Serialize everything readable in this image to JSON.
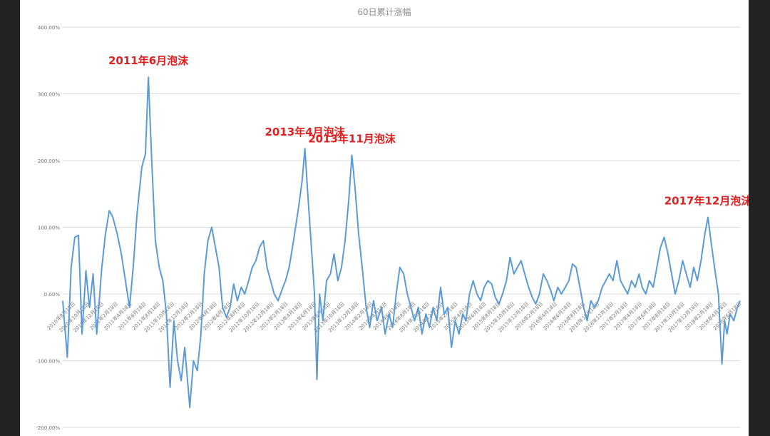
{
  "chart_data": {
    "type": "line",
    "title": "60日累计涨幅",
    "xlabel": "",
    "ylabel": "",
    "ylim": [
      -200,
      400
    ],
    "grid": true,
    "line_color": "#5b9bd5",
    "annotation_color": "#e02020",
    "y_ticks": [
      "400.00%",
      "300.00%",
      "200.00%",
      "100.00%",
      "0.00%",
      "-100.00%",
      "-200.00%"
    ],
    "x_tick_labels": [
      "2010年8月18日",
      "2010年10月18日",
      "2010年12月18日",
      "2011年2月18日",
      "2011年4月18日",
      "2011年6月18日",
      "2011年8月18日",
      "2011年10月18日",
      "2011年12月18日",
      "2012年2月18日",
      "2012年4月18日",
      "2012年6月18日",
      "2012年8月18日",
      "2012年10月18日",
      "2012年12月18日",
      "2013年2月18日",
      "2013年4月18日",
      "2013年6月18日",
      "2013年8月18日",
      "2013年10月18日",
      "2013年12月18日",
      "2014年2月18日",
      "2014年4月18日",
      "2014年6月18日",
      "2014年8月18日",
      "2014年10月18日",
      "2014年12月18日",
      "2015年2月18日",
      "2015年4月18日",
      "2015年6月18日",
      "2015年8月18日",
      "2015年10月18日",
      "2015年12月18日",
      "2016年2月18日",
      "2016年4月18日",
      "2016年6月18日",
      "2016年8月18日",
      "2016年10月18日",
      "2016年12月18日",
      "2017年2月18日",
      "2017年4月18日",
      "2017年6月18日",
      "2017年8月18日",
      "2017年10月18日",
      "2017年12月18日",
      "2018年2月18日",
      "2018年4月18日",
      "2018年6月18日"
    ],
    "series": [
      {
        "name": "",
        "points": [
          [
            "2010-08-01",
            -10
          ],
          [
            "2010-08-20",
            -95
          ],
          [
            "2010-09-05",
            40
          ],
          [
            "2010-09-20",
            85
          ],
          [
            "2010-10-05",
            88
          ],
          [
            "2010-10-20",
            -60
          ],
          [
            "2010-11-05",
            35
          ],
          [
            "2010-11-20",
            -20
          ],
          [
            "2010-12-05",
            30
          ],
          [
            "2010-12-20",
            -60
          ],
          [
            "2011-01-10",
            40
          ],
          [
            "2011-01-25",
            90
          ],
          [
            "2011-02-10",
            125
          ],
          [
            "2011-02-25",
            115
          ],
          [
            "2011-03-15",
            90
          ],
          [
            "2011-04-01",
            60
          ],
          [
            "2011-04-18",
            20
          ],
          [
            "2011-05-05",
            -20
          ],
          [
            "2011-05-20",
            40
          ],
          [
            "2011-06-05",
            120
          ],
          [
            "2011-06-25",
            190
          ],
          [
            "2011-07-10",
            210
          ],
          [
            "2011-07-22",
            325
          ],
          [
            "2011-08-05",
            200
          ],
          [
            "2011-08-20",
            80
          ],
          [
            "2011-09-05",
            40
          ],
          [
            "2011-09-20",
            20
          ],
          [
            "2011-10-05",
            -30
          ],
          [
            "2011-10-20",
            -140
          ],
          [
            "2011-11-05",
            -40
          ],
          [
            "2011-11-20",
            -100
          ],
          [
            "2011-12-05",
            -130
          ],
          [
            "2011-12-20",
            -80
          ],
          [
            "2012-01-10",
            -170
          ],
          [
            "2012-01-25",
            -100
          ],
          [
            "2012-02-10",
            -115
          ],
          [
            "2012-02-25",
            -60
          ],
          [
            "2012-03-10",
            30
          ],
          [
            "2012-03-25",
            80
          ],
          [
            "2012-04-10",
            100
          ],
          [
            "2012-04-25",
            70
          ],
          [
            "2012-05-10",
            40
          ],
          [
            "2012-05-25",
            -20
          ],
          [
            "2012-06-10",
            -35
          ],
          [
            "2012-06-25",
            -20
          ],
          [
            "2012-07-10",
            15
          ],
          [
            "2012-07-25",
            -10
          ],
          [
            "2012-08-10",
            10
          ],
          [
            "2012-08-25",
            0
          ],
          [
            "2012-09-10",
            20
          ],
          [
            "2012-09-25",
            40
          ],
          [
            "2012-10-10",
            50
          ],
          [
            "2012-10-25",
            70
          ],
          [
            "2012-11-10",
            80
          ],
          [
            "2012-11-25",
            40
          ],
          [
            "2012-12-10",
            20
          ],
          [
            "2012-12-25",
            0
          ],
          [
            "2013-01-10",
            -10
          ],
          [
            "2013-01-25",
            5
          ],
          [
            "2013-02-10",
            20
          ],
          [
            "2013-02-25",
            40
          ],
          [
            "2013-03-15",
            80
          ],
          [
            "2013-04-05",
            130
          ],
          [
            "2013-04-20",
            170
          ],
          [
            "2013-05-01",
            218
          ],
          [
            "2013-05-15",
            140
          ],
          [
            "2013-05-30",
            60
          ],
          [
            "2013-06-10",
            0
          ],
          [
            "2013-06-20",
            -128
          ],
          [
            "2013-07-01",
            0
          ],
          [
            "2013-07-15",
            -40
          ],
          [
            "2013-07-30",
            20
          ],
          [
            "2013-08-15",
            30
          ],
          [
            "2013-08-30",
            60
          ],
          [
            "2013-09-15",
            20
          ],
          [
            "2013-09-30",
            40
          ],
          [
            "2013-10-15",
            80
          ],
          [
            "2013-10-30",
            140
          ],
          [
            "2013-11-12",
            208
          ],
          [
            "2013-11-25",
            160
          ],
          [
            "2013-12-10",
            90
          ],
          [
            "2013-12-25",
            40
          ],
          [
            "2014-01-10",
            -20
          ],
          [
            "2014-01-25",
            -50
          ],
          [
            "2014-02-10",
            -10
          ],
          [
            "2014-02-25",
            -40
          ],
          [
            "2014-03-15",
            -20
          ],
          [
            "2014-03-30",
            -60
          ],
          [
            "2014-04-15",
            -30
          ],
          [
            "2014-04-30",
            -50
          ],
          [
            "2014-05-15",
            0
          ],
          [
            "2014-05-30",
            40
          ],
          [
            "2014-06-15",
            30
          ],
          [
            "2014-06-30",
            0
          ],
          [
            "2014-07-15",
            -20
          ],
          [
            "2014-07-30",
            -40
          ],
          [
            "2014-08-15",
            -20
          ],
          [
            "2014-08-30",
            -60
          ],
          [
            "2014-09-15",
            -30
          ],
          [
            "2014-09-30",
            -50
          ],
          [
            "2014-10-15",
            -20
          ],
          [
            "2014-10-30",
            -40
          ],
          [
            "2014-11-15",
            10
          ],
          [
            "2014-11-30",
            -30
          ],
          [
            "2014-12-15",
            -20
          ],
          [
            "2014-12-30",
            -80
          ],
          [
            "2015-01-15",
            -40
          ],
          [
            "2015-01-30",
            -60
          ],
          [
            "2015-02-15",
            -30
          ],
          [
            "2015-02-28",
            -40
          ],
          [
            "2015-03-15",
            0
          ],
          [
            "2015-03-30",
            20
          ],
          [
            "2015-04-15",
            0
          ],
          [
            "2015-04-30",
            -10
          ],
          [
            "2015-05-15",
            10
          ],
          [
            "2015-05-30",
            20
          ],
          [
            "2015-06-15",
            15
          ],
          [
            "2015-06-30",
            -5
          ],
          [
            "2015-07-15",
            -15
          ],
          [
            "2015-07-30",
            0
          ],
          [
            "2015-08-15",
            20
          ],
          [
            "2015-08-30",
            55
          ],
          [
            "2015-09-15",
            30
          ],
          [
            "2015-09-30",
            40
          ],
          [
            "2015-10-15",
            50
          ],
          [
            "2015-10-30",
            30
          ],
          [
            "2015-11-15",
            10
          ],
          [
            "2015-11-30",
            -5
          ],
          [
            "2015-12-15",
            -15
          ],
          [
            "2015-12-30",
            0
          ],
          [
            "2016-01-15",
            30
          ],
          [
            "2016-01-30",
            20
          ],
          [
            "2016-02-15",
            5
          ],
          [
            "2016-02-28",
            -10
          ],
          [
            "2016-03-15",
            10
          ],
          [
            "2016-03-30",
            0
          ],
          [
            "2016-04-15",
            10
          ],
          [
            "2016-04-30",
            20
          ],
          [
            "2016-05-15",
            45
          ],
          [
            "2016-05-30",
            40
          ],
          [
            "2016-06-15",
            10
          ],
          [
            "2016-06-30",
            -20
          ],
          [
            "2016-07-15",
            -40
          ],
          [
            "2016-07-30",
            -10
          ],
          [
            "2016-08-15",
            -20
          ],
          [
            "2016-08-30",
            -10
          ],
          [
            "2016-09-15",
            10
          ],
          [
            "2016-09-30",
            20
          ],
          [
            "2016-10-15",
            30
          ],
          [
            "2016-10-30",
            20
          ],
          [
            "2016-11-15",
            50
          ],
          [
            "2016-11-30",
            20
          ],
          [
            "2016-12-15",
            10
          ],
          [
            "2016-12-30",
            0
          ],
          [
            "2017-01-15",
            20
          ],
          [
            "2017-01-30",
            10
          ],
          [
            "2017-02-15",
            30
          ],
          [
            "2017-02-28",
            10
          ],
          [
            "2017-03-15",
            0
          ],
          [
            "2017-03-30",
            20
          ],
          [
            "2017-04-15",
            10
          ],
          [
            "2017-04-30",
            40
          ],
          [
            "2017-05-15",
            70
          ],
          [
            "2017-05-30",
            85
          ],
          [
            "2017-06-15",
            60
          ],
          [
            "2017-06-30",
            30
          ],
          [
            "2017-07-15",
            0
          ],
          [
            "2017-07-30",
            20
          ],
          [
            "2017-08-15",
            50
          ],
          [
            "2017-08-30",
            30
          ],
          [
            "2017-09-15",
            10
          ],
          [
            "2017-09-30",
            40
          ],
          [
            "2017-10-15",
            20
          ],
          [
            "2017-10-30",
            50
          ],
          [
            "2017-11-15",
            90
          ],
          [
            "2017-11-28",
            115
          ],
          [
            "2017-12-10",
            80
          ],
          [
            "2017-12-25",
            40
          ],
          [
            "2018-01-10",
            0
          ],
          [
            "2018-01-25",
            -105
          ],
          [
            "2018-02-05",
            -40
          ],
          [
            "2018-02-15",
            -60
          ],
          [
            "2018-02-28",
            -30
          ],
          [
            "2018-03-15",
            -40
          ],
          [
            "2018-03-30",
            -20
          ],
          [
            "2018-04-10",
            -10
          ]
        ]
      }
    ],
    "annotations": [
      {
        "text": "2011年6月泡沫",
        "date": "2011-07-22",
        "value": 325
      },
      {
        "text": "2013年4月泡沫",
        "date": "2013-05-01",
        "value": 218
      },
      {
        "text": "2013年11月泡沫",
        "date": "2013-11-12",
        "value": 208
      },
      {
        "text": "2017年12月泡沫",
        "date": "2017-11-28",
        "value": 115
      }
    ]
  }
}
